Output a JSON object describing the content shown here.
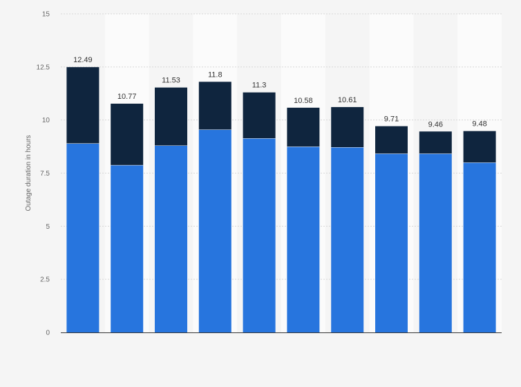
{
  "chart_data": {
    "type": "bar",
    "stacked": true,
    "categories": [
      "",
      "",
      "",
      "",
      "",
      "",
      "",
      "",
      "",
      ""
    ],
    "series": [
      {
        "color": "#2775de",
        "values": [
          8.9,
          7.88,
          8.8,
          9.55,
          9.14,
          8.75,
          8.72,
          8.42,
          8.42,
          8.0
        ]
      },
      {
        "color": "#0f253e",
        "values": [
          3.59,
          2.89,
          2.73,
          2.25,
          2.16,
          1.83,
          1.89,
          1.29,
          1.04,
          1.48
        ]
      }
    ],
    "totals": [
      "12.49",
      "10.77",
      "11.53",
      "11.8",
      "11.3",
      "10.58",
      "10.61",
      "9.71",
      "9.46",
      "9.48"
    ],
    "title": "",
    "xlabel": "",
    "ylabel": "Outage duration in hours",
    "ylim": [
      0,
      15
    ],
    "yticks": [
      0,
      2.5,
      5,
      7.5,
      10,
      12.5,
      15
    ],
    "ytick_labels": [
      "0",
      "2.5",
      "5",
      "7.5",
      "10",
      "12.5",
      "15"
    ],
    "grid": true,
    "legend": "none",
    "colors": {
      "background": "#f5f5f5",
      "band": "#fbfbfb",
      "grid": "#d6d6d6",
      "axis": "#333333",
      "tick_text": "#666666",
      "label_text": "#333333"
    }
  }
}
